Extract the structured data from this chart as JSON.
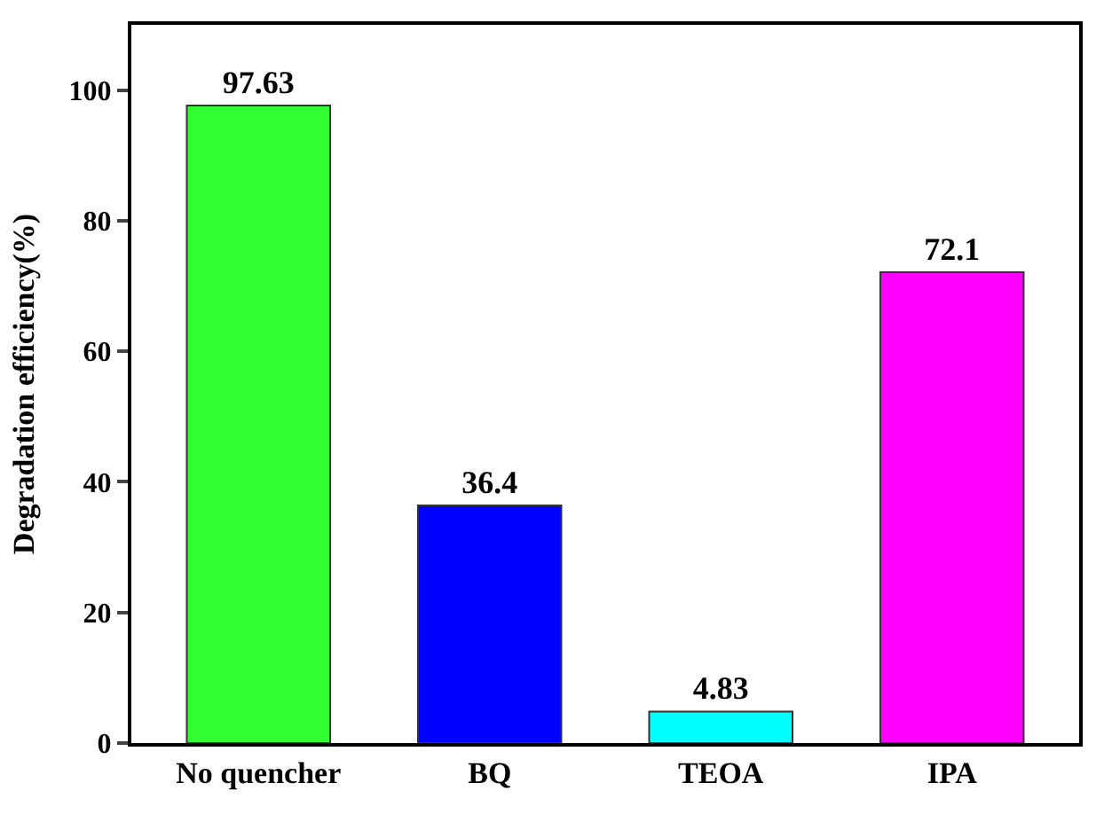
{
  "chart_data": {
    "type": "bar",
    "ylabel": "Degradation efficiency(%)",
    "categories": [
      "No quencher",
      "BQ",
      "TEOA",
      "IPA"
    ],
    "values": [
      97.63,
      36.4,
      4.83,
      72.1
    ],
    "colors": [
      "#33ff33",
      "#0000ff",
      "#00ffff",
      "#ff00ff"
    ],
    "ylim": [
      0,
      110
    ],
    "yticks": [
      0,
      20,
      40,
      60,
      80,
      100
    ],
    "data_labels": true
  }
}
